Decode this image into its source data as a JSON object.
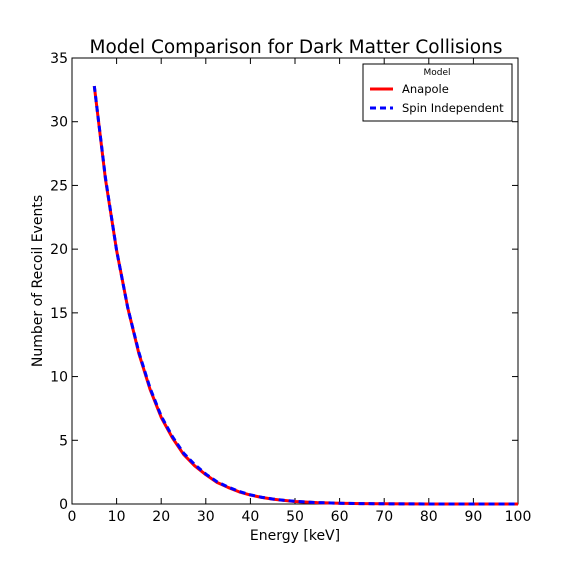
{
  "chart_data": {
    "type": "line",
    "title": "Model Comparison for Dark Matter Collisions",
    "xlabel": "Energy [keV]",
    "ylabel": "Number of Recoil Events",
    "xlim": [
      0,
      100
    ],
    "ylim": [
      0,
      35
    ],
    "xticks": [
      0,
      10,
      20,
      30,
      40,
      50,
      60,
      70,
      80,
      90,
      100
    ],
    "yticks": [
      0,
      5,
      10,
      15,
      20,
      25,
      30,
      35
    ],
    "grid": false,
    "legend": {
      "title": "Model",
      "placement": "top-right"
    },
    "x": [
      5,
      7.5,
      10,
      12.5,
      15,
      17.5,
      20,
      22.5,
      25,
      27.5,
      30,
      32.5,
      35,
      37.5,
      40,
      42.5,
      45,
      47.5,
      50,
      55,
      60,
      65,
      70,
      75,
      80,
      85,
      90,
      95,
      100
    ],
    "series": [
      {
        "name": "Anapole",
        "color": "#ff0000",
        "style": "solid",
        "values": [
          32.8,
          25.5,
          19.9,
          15.4,
          11.8,
          9.0,
          6.8,
          5.2,
          3.9,
          3.0,
          2.3,
          1.7,
          1.3,
          0.95,
          0.7,
          0.52,
          0.38,
          0.28,
          0.2,
          0.11,
          0.06,
          0.03,
          0.015,
          0.008,
          0.004,
          0.002,
          0.001,
          0.0005,
          0.0002
        ]
      },
      {
        "name": "Spin Independent",
        "color": "#0000ff",
        "style": "dashed",
        "values": [
          32.8,
          25.6,
          19.9,
          15.4,
          11.9,
          9.1,
          6.9,
          5.3,
          4.0,
          3.1,
          2.35,
          1.75,
          1.33,
          0.98,
          0.72,
          0.53,
          0.39,
          0.29,
          0.21,
          0.11,
          0.06,
          0.03,
          0.015,
          0.008,
          0.004,
          0.002,
          0.001,
          0.0005,
          0.0002
        ]
      }
    ]
  }
}
